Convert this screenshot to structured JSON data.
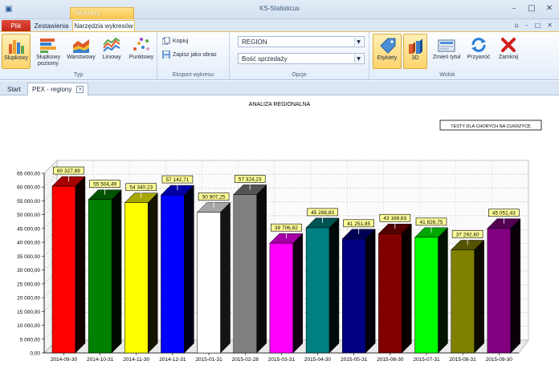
{
  "window": {
    "title": "KS-Statisticus",
    "context_tab_header": "Wykresy"
  },
  "ribbon_tabs": {
    "file": "Plik",
    "sets": "Zestawienia",
    "tools": "Narzędzia wykresów"
  },
  "ribbon": {
    "type_group": {
      "label": "Typ",
      "buttons": [
        {
          "label": "Słupkowy",
          "icon": "bar-chart-icon"
        },
        {
          "label": "Słupkowy poziomy",
          "icon": "horizontal-bar-chart-icon"
        },
        {
          "label": "Warstwowy",
          "icon": "area-chart-icon"
        },
        {
          "label": "Liniowy",
          "icon": "line-chart-icon"
        },
        {
          "label": "Punktowy",
          "icon": "scatter-chart-icon"
        }
      ]
    },
    "export_group": {
      "label": "Eksport wykresu",
      "copy": "Kopiuj",
      "save_image": "Zapisz jako obraz"
    },
    "options_group": {
      "label": "Opcje",
      "combo1": "REGION",
      "combo2": "Bość sprzedaży"
    },
    "view_group": {
      "label": "Widok",
      "labels_btn": "Etykiety",
      "btn_3d": "3D",
      "change_title": "Zmień tytuł",
      "restore": "Przywróć",
      "close": "Zamknij"
    }
  },
  "doc_tabs": {
    "start": "Start",
    "active": "PEX - regiony"
  },
  "colors": {
    "accent": "#f7c64a",
    "file_tab": "#c22a1c"
  },
  "chart_data": {
    "type": "bar",
    "title": "ANALIZA REGIONALNA",
    "legend": "TESTY DLA CHORYCH NA CUKRZYCĘ",
    "legend_position": "top-right",
    "three_d": true,
    "grid": true,
    "ylim": [
      0,
      65000
    ],
    "yticks": [
      "0,00",
      "5 000,00",
      "10 000,00",
      "15 000,00",
      "20 000,00",
      "25 000,00",
      "30 000,00",
      "35 000,00",
      "40 000,00",
      "45 000,00",
      "50 000,00",
      "55 000,00",
      "60 000,00",
      "65 000,00"
    ],
    "categories": [
      "2014-09-30",
      "2014-10-31",
      "2014-11-30",
      "2014-12-31",
      "2015-01-31",
      "2015-02-28",
      "2015-03-31",
      "2015-04-30",
      "2015-05-31",
      "2015-06-30",
      "2015-07-31",
      "2015-08-31",
      "2015-09-30"
    ],
    "values": [
      60327.89,
      55504.49,
      54340.23,
      57142.71,
      50907.25,
      57324.23,
      39706.82,
      45288.83,
      41251.85,
      43168.63,
      41826.75,
      37292.6,
      45051.43
    ],
    "value_labels": [
      "60 327,89",
      "55 504,49",
      "54 340,23",
      "57 142,71",
      "50 907,25",
      "57 324,23",
      "39 706,82",
      "45 288,83",
      "41 251,85",
      "43 168,63",
      "41 826,75",
      "37 292,60",
      "45 051,43"
    ],
    "bar_colors": [
      "#ff0000",
      "#008000",
      "#ffff00",
      "#0000ff",
      "#ffffff",
      "#808080",
      "#ff00ff",
      "#008080",
      "#000080",
      "#800000",
      "#00ff00",
      "#808000",
      "#800080"
    ]
  }
}
